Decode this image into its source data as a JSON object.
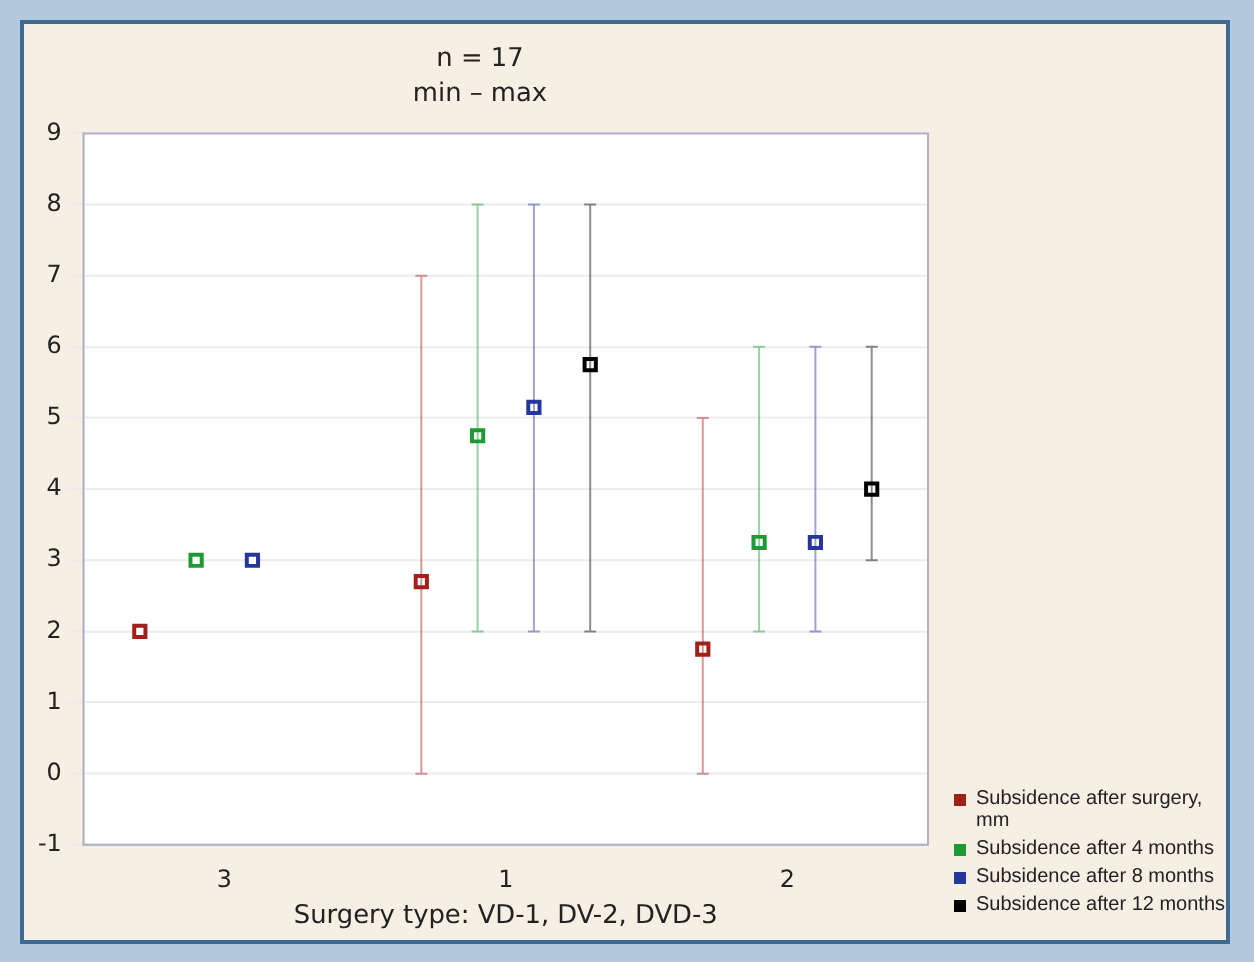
{
  "chart_data": {
    "type": "scatter",
    "title": "n = 17",
    "subtitle": "min – max",
    "xlabel": "Surgery type: VD-1, DV-2, DVD-3",
    "categories": [
      "3",
      "1",
      "2"
    ],
    "series": [
      {
        "name": "Subsidence after surgery, mm",
        "color": "#a31f1a",
        "values": [
          2,
          2.7,
          1.75
        ],
        "errors": [
          null,
          [
            0,
            7
          ],
          [
            0,
            5
          ]
        ]
      },
      {
        "name": "Subsidence after 4 months",
        "color": "#1d9a33",
        "values": [
          3,
          4.75,
          3.25
        ],
        "errors": [
          null,
          [
            2,
            8
          ],
          [
            2,
            6
          ]
        ]
      },
      {
        "name": "Subsidence after 8 months",
        "color": "#26369a",
        "values": [
          3,
          5.15,
          3.25
        ],
        "errors": [
          null,
          [
            2,
            8
          ],
          [
            2,
            6
          ]
        ]
      },
      {
        "name": "Subsidence after 12 months",
        "color": "#000000",
        "values": [
          null,
          5.75,
          4
        ],
        "errors": [
          null,
          [
            2,
            8
          ],
          [
            3,
            6
          ]
        ]
      }
    ],
    "ylim": [
      -1,
      9
    ],
    "yticks": [
      -1,
      0,
      1,
      2,
      3,
      4,
      5,
      6,
      7,
      8,
      9
    ],
    "grid": "y",
    "legend": "bottom right",
    "marker": "square"
  }
}
